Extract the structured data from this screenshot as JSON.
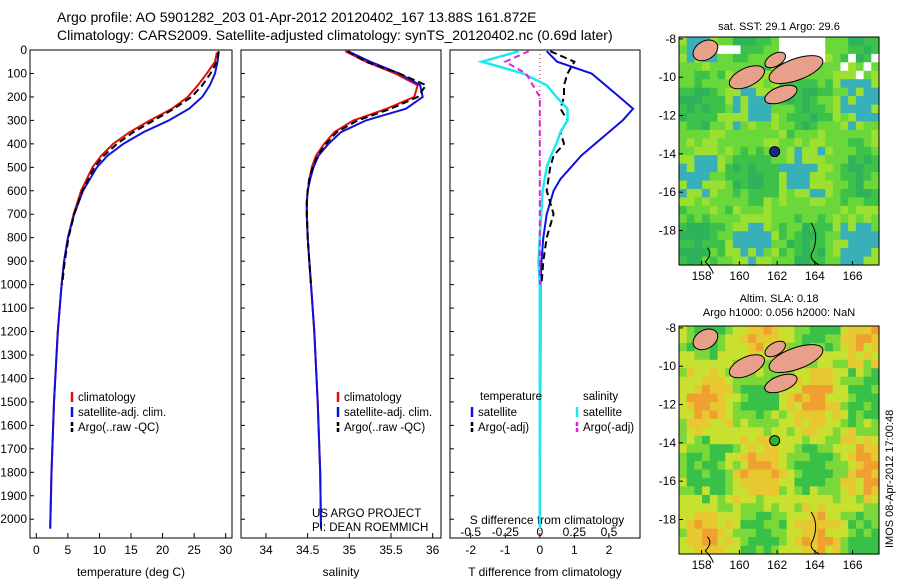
{
  "header": {
    "line1": "Argo profile: AO 5901282_203 01-Apr-2012 20120402_167 13.88S 161.872E",
    "line2": "Climatology: CARS2009. Satellite-adjusted climatology: synTS_20120402.nc (0.69d later)"
  },
  "colors": {
    "climatology": "#e01010",
    "satellite": "#1010e0",
    "argo": "#000000",
    "sal_sat": "#20e8f0",
    "sal_argo": "#e020e0"
  },
  "chart_data": [
    {
      "type": "line",
      "name": "temperature-profile",
      "xlabel": "temperature (deg C)",
      "xlim": [
        -1,
        31
      ],
      "xticks": [
        0,
        5,
        10,
        15,
        20,
        25,
        30
      ],
      "ylim": [
        0,
        2080
      ],
      "yticks": [
        0,
        100,
        200,
        300,
        400,
        500,
        600,
        700,
        800,
        900,
        1000,
        1100,
        1200,
        1300,
        1400,
        1500,
        1600,
        1700,
        1800,
        1900,
        2000
      ],
      "legend": [
        "climatology",
        "satellite-adj. clim.",
        "Argo(..raw -QC)"
      ],
      "series": [
        {
          "name": "climatology",
          "depth": [
            10,
            50,
            100,
            150,
            200,
            250,
            300,
            350,
            400,
            450,
            500,
            600,
            700,
            800,
            900,
            1000,
            1200,
            1500,
            1800,
            2040
          ],
          "value": [
            28.6,
            28.3,
            27.0,
            25.6,
            24.0,
            21.5,
            18.0,
            14.8,
            12.2,
            10.3,
            8.9,
            7.1,
            5.9,
            5.0,
            4.4,
            4.0,
            3.4,
            2.8,
            2.4,
            2.2
          ]
        },
        {
          "name": "satellite-adj. clim.",
          "depth": [
            10,
            50,
            100,
            150,
            200,
            250,
            300,
            350,
            400,
            450,
            500,
            600,
            700,
            800,
            900,
            1000,
            1200,
            1500,
            1800,
            2040
          ],
          "value": [
            28.9,
            28.7,
            28.3,
            27.5,
            26.3,
            24.2,
            21.0,
            17.0,
            13.8,
            11.3,
            9.6,
            7.4,
            6.0,
            5.0,
            4.4,
            4.0,
            3.4,
            2.8,
            2.4,
            2.2
          ]
        },
        {
          "name": "Argo(..raw -QC)",
          "depth": [
            5,
            50,
            100,
            150,
            200,
            250,
            300,
            350,
            400,
            450,
            500,
            600,
            700,
            800,
            900,
            1000
          ],
          "value": [
            28.9,
            28.6,
            27.6,
            26.3,
            24.6,
            21.8,
            18.6,
            15.4,
            12.8,
            10.7,
            9.2,
            7.3,
            6.0,
            5.1,
            4.5,
            4.1
          ]
        }
      ]
    },
    {
      "type": "line",
      "name": "salinity-profile",
      "xlabel": "salinity",
      "xlim": [
        33.7,
        36.1
      ],
      "xticks": [
        34,
        34.5,
        35,
        35.5,
        36
      ],
      "xtick_labels": [
        "34",
        "34.5",
        "35",
        "35.5",
        "36"
      ],
      "ylim": [
        0,
        2080
      ],
      "legend": [
        "climatology",
        "satellite-adj. clim.",
        "Argo(..raw -QC)"
      ],
      "annotation": [
        "US ARGO PROJECT",
        "PI: DEAN ROEMMICH"
      ],
      "series": [
        {
          "name": "climatology",
          "depth": [
            5,
            50,
            100,
            150,
            200,
            250,
            300,
            350,
            400,
            450,
            500,
            550,
            600,
            650,
            700,
            800,
            900,
            1000,
            1200,
            1500,
            1800,
            2040
          ],
          "value": [
            34.95,
            35.2,
            35.55,
            35.82,
            35.78,
            35.45,
            35.05,
            34.82,
            34.7,
            34.6,
            34.55,
            34.52,
            34.5,
            34.49,
            34.49,
            34.5,
            34.52,
            34.54,
            34.58,
            34.62,
            34.65,
            34.66
          ]
        },
        {
          "name": "satellite-adj. clim.",
          "depth": [
            5,
            50,
            100,
            150,
            200,
            250,
            300,
            350,
            400,
            450,
            500,
            550,
            600,
            650,
            700,
            800,
            900,
            1000,
            1200,
            1500,
            1800,
            2040
          ],
          "value": [
            34.98,
            35.25,
            35.6,
            35.85,
            35.88,
            35.68,
            35.2,
            34.9,
            34.75,
            34.63,
            34.57,
            34.53,
            34.5,
            34.49,
            34.49,
            34.5,
            34.52,
            34.54,
            34.58,
            34.62,
            34.65,
            34.66
          ]
        },
        {
          "name": "Argo(..raw -QC)",
          "depth": [
            5,
            50,
            100,
            150,
            200,
            250,
            300,
            350,
            400,
            450,
            500,
            550,
            600,
            650,
            700,
            800,
            900,
            1000
          ],
          "value": [
            34.98,
            35.2,
            35.6,
            35.92,
            35.82,
            35.5,
            35.1,
            34.85,
            34.72,
            34.62,
            34.56,
            34.52,
            34.5,
            34.49,
            34.49,
            34.5,
            34.52,
            34.54
          ]
        }
      ]
    },
    {
      "type": "line",
      "name": "difference-profile",
      "xlabel": "T difference from climatology",
      "xlim": [
        -2.6,
        2.9
      ],
      "xticks": [
        -2,
        -1,
        0,
        1,
        2
      ],
      "top_label": "S difference from climatology",
      "top_ticks": [
        -0.5,
        -0.25,
        0,
        0.25,
        0.5
      ],
      "top_tick_labels": [
        "-0.5",
        "-0.25",
        "0",
        "0.25",
        "0.5"
      ],
      "ylim": [
        0,
        2080
      ],
      "legend": {
        "temperature_title": "temperature",
        "salinity_title": "salinity",
        "temperature": [
          "satellite",
          "Argo(-adj)"
        ],
        "salinity": [
          "satellite",
          "Argo(-adj)"
        ]
      },
      "series": [
        {
          "name": "T satellite",
          "depth": [
            5,
            50,
            100,
            150,
            200,
            250,
            300,
            350,
            400,
            450,
            500,
            550,
            600,
            700,
            800,
            900,
            1000,
            1500,
            2040
          ],
          "value": [
            0.2,
            0.5,
            1.5,
            1.9,
            2.3,
            2.7,
            2.4,
            2.0,
            1.6,
            1.2,
            0.9,
            0.6,
            0.4,
            0.2,
            0.1,
            0.05,
            0.02,
            0.01,
            0.0
          ]
        },
        {
          "name": "T Argo(-adj)",
          "depth": [
            5,
            50,
            100,
            150,
            200,
            250,
            300,
            350,
            400,
            450,
            500,
            600,
            700,
            800,
            900,
            1000
          ],
          "value": [
            0.3,
            1.0,
            0.8,
            0.7,
            0.7,
            0.6,
            0.8,
            0.6,
            0.7,
            0.4,
            0.3,
            0.2,
            0.4,
            0.2,
            0.1,
            0.05
          ]
        },
        {
          "name": "S satellite",
          "depth": [
            5,
            50,
            100,
            150,
            200,
            250,
            300,
            350,
            400,
            450,
            500,
            600,
            700,
            800,
            900,
            1000,
            1500,
            2040
          ],
          "value": [
            -0.15,
            -0.42,
            -0.12,
            0.05,
            0.12,
            0.2,
            0.2,
            0.15,
            0.12,
            0.08,
            0.05,
            0.02,
            0.01,
            0.0,
            -0.01,
            0.0,
            0.0,
            0.0
          ]
        },
        {
          "name": "S Argo(-adj)",
          "depth": [
            5,
            50,
            100,
            150,
            200,
            250,
            300,
            350,
            400,
            450,
            500,
            600,
            700,
            800,
            900,
            1000
          ],
          "value": [
            -0.08,
            -0.25,
            -0.1,
            -0.05,
            0.0,
            0.0,
            0.0,
            0.0,
            0.0,
            0.0,
            0.0,
            0.0,
            0.0,
            0.0,
            0.0,
            0.0
          ]
        }
      ]
    },
    {
      "type": "heatmap",
      "name": "sst-map",
      "title": "sat. SST: 29.1  Argo: 29.6",
      "xlim": [
        156.8,
        167.4
      ],
      "ylim": [
        -19.8,
        -7.9
      ],
      "xticks": [
        158,
        160,
        162,
        164,
        166
      ],
      "yticks": [
        -8,
        -10,
        -12,
        -14,
        -16,
        -18
      ],
      "argo_point": {
        "lon": 161.87,
        "lat": -13.88
      }
    },
    {
      "type": "heatmap",
      "name": "sla-map",
      "title": "Altim. SLA: 0.18",
      "subtitle": "Argo h1000: 0.056 h2000: NaN",
      "xlim": [
        156.8,
        167.4
      ],
      "ylim": [
        -19.8,
        -7.9
      ],
      "xticks": [
        158,
        160,
        162,
        164,
        166
      ],
      "yticks": [
        -8,
        -10,
        -12,
        -14,
        -16,
        -18
      ],
      "argo_point": {
        "lon": 161.87,
        "lat": -13.88
      }
    }
  ],
  "footer": {
    "stamp": "IMOS 08-Apr-2012 17:00:48"
  }
}
